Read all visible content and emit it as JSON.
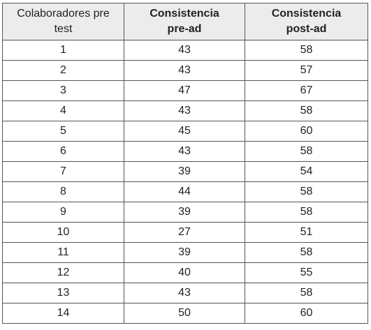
{
  "table": {
    "headers": [
      {
        "line1": "Colaboradores pre",
        "line2": "test"
      },
      {
        "line1": "Consistencia",
        "line2": "pre-ad"
      },
      {
        "line1": "Consistencia",
        "line2": "post-ad"
      }
    ],
    "rows": [
      [
        "1",
        "43",
        "58"
      ],
      [
        "2",
        "43",
        "57"
      ],
      [
        "3",
        "47",
        "67"
      ],
      [
        "4",
        "43",
        "58"
      ],
      [
        "5",
        "45",
        "60"
      ],
      [
        "6",
        "43",
        "58"
      ],
      [
        "7",
        "39",
        "54"
      ],
      [
        "8",
        "44",
        "58"
      ],
      [
        "9",
        "39",
        "58"
      ],
      [
        "10",
        "27",
        "51"
      ],
      [
        "11",
        "39",
        "58"
      ],
      [
        "12",
        "40",
        "55"
      ],
      [
        "13",
        "43",
        "58"
      ],
      [
        "14",
        "50",
        "60"
      ]
    ]
  },
  "colors": {
    "header_background": "#ececec",
    "border": "#555555",
    "text": "#222222"
  }
}
